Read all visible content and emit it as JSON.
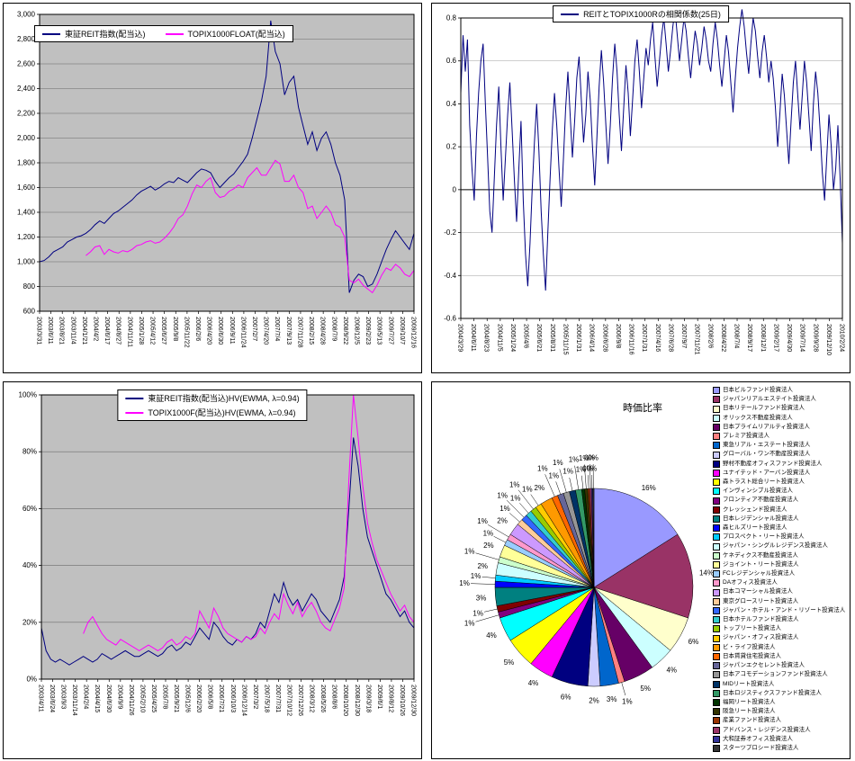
{
  "chart_data": [
    {
      "id": "reit-index",
      "type": "line",
      "title": "",
      "yformat": "comma",
      "ylim": [
        600,
        3000
      ],
      "ystep": 200,
      "grid": true,
      "legend_position": "top-inside",
      "plot_bg": "#C0C0C0",
      "grid_color": "#6B6B6B",
      "x_labels": [
        "2003/3/31",
        "2003/6/11",
        "2003/8/21",
        "2003/11/4",
        "2004/1/21",
        "2004/4/2",
        "2004/6/17",
        "2004/8/27",
        "2004/11/11",
        "2005/1/28",
        "2005/4/12",
        "2005/6/27",
        "2005/9/8",
        "2005/11/22",
        "2006/2/6",
        "2006/4/20",
        "2006/6/30",
        "2006/9/11",
        "2006/11/24",
        "2007/2/7",
        "2007/4/20",
        "2007/7/4",
        "2007/9/13",
        "2007/11/28",
        "2008/2/15",
        "2008/4/28",
        "2008/7/9",
        "2008/9/22",
        "2008/12/5",
        "2009/2/23",
        "2009/5/13",
        "2009/7/27",
        "2009/10/7",
        "2009/12/16"
      ],
      "series": [
        {
          "name": "東証REIT指数(配当込)",
          "color": "#000080",
          "values": [
            1000,
            1010,
            1040,
            1080,
            1100,
            1120,
            1160,
            1180,
            1200,
            1210,
            1230,
            1260,
            1300,
            1330,
            1310,
            1350,
            1390,
            1410,
            1440,
            1470,
            1500,
            1540,
            1570,
            1590,
            1610,
            1580,
            1600,
            1630,
            1650,
            1640,
            1680,
            1660,
            1640,
            1680,
            1720,
            1750,
            1740,
            1720,
            1650,
            1600,
            1640,
            1680,
            1710,
            1760,
            1810,
            1870,
            2000,
            2150,
            2300,
            2500,
            2950,
            2700,
            2600,
            2350,
            2450,
            2500,
            2250,
            2100,
            1950,
            2050,
            1900,
            2000,
            2050,
            1950,
            1800,
            1700,
            1500,
            750,
            850,
            900,
            880,
            800,
            820,
            900,
            1000,
            1100,
            1180,
            1250,
            1200,
            1150,
            1100,
            1230
          ]
        },
        {
          "name": "TOPIX1000FLOAT(配当込)",
          "color": "#FF00FF",
          "values": [
            null,
            null,
            null,
            null,
            null,
            null,
            null,
            null,
            null,
            null,
            1050,
            1080,
            1120,
            1130,
            1060,
            1100,
            1080,
            1070,
            1090,
            1080,
            1100,
            1130,
            1140,
            1160,
            1170,
            1150,
            1160,
            1190,
            1230,
            1280,
            1350,
            1380,
            1450,
            1550,
            1620,
            1600,
            1650,
            1680,
            1560,
            1520,
            1530,
            1570,
            1590,
            1620,
            1600,
            1680,
            1720,
            1760,
            1700,
            1700,
            1760,
            1820,
            1790,
            1650,
            1650,
            1700,
            1600,
            1560,
            1430,
            1450,
            1350,
            1400,
            1450,
            1400,
            1300,
            1280,
            1200,
            850,
            830,
            860,
            810,
            780,
            750,
            810,
            890,
            950,
            930,
            980,
            950,
            900,
            880,
            930
          ]
        }
      ]
    },
    {
      "id": "correlation",
      "type": "line",
      "title": "REITとTOPIX1000Rの相関係数(25日)",
      "yformat": "dec1",
      "ylim": [
        -0.6,
        0.8
      ],
      "ystep": 0.2,
      "grid": true,
      "legend_position": "top-title",
      "plot_bg": "#FFFFFF",
      "grid_color": "#B0B0B0",
      "x_labels": [
        "2004/3/29",
        "2004/6/11",
        "2004/8/23",
        "2004/11/5",
        "2005/1/24",
        "2005/4/6",
        "2005/6/21",
        "2005/8/31",
        "2005/11/15",
        "2006/1/31",
        "2006/4/14",
        "2006/6/28",
        "2006/9/8",
        "2006/11/16",
        "2007/1/31",
        "2007/4/16",
        "2007/6/28",
        "2007/9/7",
        "2007/11/21",
        "2008/2/6",
        "2008/4/22",
        "2008/7/4",
        "2008/9/17",
        "2008/12/1",
        "2009/2/17",
        "2009/4/30",
        "2009/7/14",
        "2009/9/28",
        "2009/12/10",
        "2010/2/24"
      ],
      "series": [
        {
          "name": "REITとTOPIX1000Rの相関係数(25日)",
          "color": "#000080",
          "values": [
            0.45,
            0.72,
            0.55,
            0.7,
            0.3,
            0.1,
            -0.05,
            0.25,
            0.45,
            0.6,
            0.68,
            0.4,
            0.15,
            -0.1,
            -0.2,
            0.05,
            0.3,
            0.48,
            0.2,
            -0.05,
            0.15,
            0.35,
            0.5,
            0.28,
            0.05,
            -0.15,
            0.1,
            0.32,
            -0.05,
            -0.3,
            -0.45,
            -0.25,
            0.0,
            0.22,
            0.4,
            0.18,
            -0.1,
            -0.3,
            -0.47,
            -0.2,
            0.05,
            0.28,
            0.45,
            0.3,
            0.1,
            -0.08,
            0.15,
            0.38,
            0.55,
            0.35,
            0.15,
            0.32,
            0.52,
            0.62,
            0.42,
            0.22,
            0.35,
            0.55,
            0.42,
            0.2,
            0.02,
            0.25,
            0.48,
            0.65,
            0.5,
            0.3,
            0.12,
            0.3,
            0.52,
            0.68,
            0.55,
            0.35,
            0.18,
            0.38,
            0.58,
            0.45,
            0.25,
            0.42,
            0.6,
            0.7,
            0.55,
            0.38,
            0.52,
            0.66,
            0.58,
            0.7,
            0.78,
            0.62,
            0.48,
            0.6,
            0.72,
            0.8,
            0.68,
            0.55,
            0.65,
            0.76,
            0.84,
            0.72,
            0.6,
            0.7,
            0.8,
            0.74,
            0.62,
            0.52,
            0.64,
            0.74,
            0.68,
            0.58,
            0.66,
            0.76,
            0.7,
            0.6,
            0.55,
            0.68,
            0.78,
            0.7,
            0.58,
            0.48,
            0.6,
            0.72,
            0.64,
            0.5,
            0.36,
            0.52,
            0.66,
            0.76,
            0.84,
            0.76,
            0.64,
            0.54,
            0.68,
            0.8,
            0.74,
            0.62,
            0.52,
            0.64,
            0.72,
            0.62,
            0.5,
            0.6,
            0.52,
            0.38,
            0.2,
            0.36,
            0.54,
            0.44,
            0.28,
            0.12,
            0.32,
            0.5,
            0.6,
            0.44,
            0.28,
            0.44,
            0.6,
            0.5,
            0.34,
            0.18,
            0.4,
            0.55,
            0.45,
            0.28,
            0.08,
            -0.05,
            0.15,
            0.35,
            0.2,
            0.0,
            0.1,
            0.3,
            0.05,
            -0.25
          ]
        }
      ]
    },
    {
      "id": "historical-volatility",
      "type": "line",
      "title": "",
      "yformat": "percent",
      "ylim": [
        0,
        100
      ],
      "ystep": 20,
      "grid": true,
      "legend_position": "top-inside-stacked",
      "plot_bg": "#C0C0C0",
      "grid_color": "#6B6B6B",
      "x_labels": [
        "2003/4/11",
        "2003/6/24",
        "2003/9/3",
        "2003/11/14",
        "2004/2/4",
        "2004/4/15",
        "2004/6/30",
        "2004/9/9",
        "2004/11/26",
        "2005/2/10",
        "2005/4/25",
        "2005/7/8",
        "2005/9/21",
        "2005/12/6",
        "2006/2/20",
        "2006/5/8",
        "2006/7/21",
        "2006/10/3",
        "2006/12/14",
        "2007/3/2",
        "2007/5/18",
        "2007/7/31",
        "2007/10/12",
        "2007/12/26",
        "2008/3/12",
        "2008/5/26",
        "2008/8/6",
        "2008/10/20",
        "2008/12/30",
        "2009/3/18",
        "2009/6/1",
        "2009/8/12",
        "2009/10/26",
        "2009/12/30"
      ],
      "series": [
        {
          "name": "東証REIT指数(配当込)HV(EWMA, λ=0.94)",
          "color": "#000080",
          "values": [
            18,
            10,
            7,
            6,
            7,
            6,
            5,
            6,
            7,
            8,
            7,
            6,
            7,
            9,
            8,
            7,
            8,
            9,
            10,
            9,
            8,
            8,
            9,
            10,
            9,
            8,
            9,
            11,
            12,
            10,
            11,
            13,
            12,
            15,
            18,
            16,
            14,
            20,
            18,
            15,
            13,
            12,
            14,
            13,
            15,
            14,
            16,
            20,
            18,
            24,
            30,
            27,
            34,
            29,
            26,
            28,
            24,
            27,
            30,
            28,
            24,
            22,
            20,
            24,
            28,
            36,
            60,
            85,
            75,
            60,
            50,
            45,
            40,
            35,
            30,
            28,
            25,
            22,
            24,
            20,
            18
          ]
        },
        {
          "name": "TOPIX1000F(配当込)HV(EWMA, λ=0.94)",
          "color": "#FF00FF",
          "values": [
            null,
            null,
            null,
            null,
            null,
            null,
            null,
            null,
            null,
            16,
            20,
            22,
            19,
            16,
            14,
            13,
            12,
            14,
            13,
            12,
            11,
            10,
            11,
            12,
            11,
            10,
            11,
            13,
            14,
            12,
            13,
            15,
            14,
            16,
            24,
            21,
            18,
            25,
            22,
            18,
            16,
            15,
            14,
            13,
            15,
            14,
            15,
            18,
            16,
            20,
            23,
            21,
            30,
            26,
            23,
            27,
            22,
            25,
            27,
            24,
            20,
            18,
            17,
            21,
            25,
            32,
            70,
            100,
            85,
            68,
            55,
            48,
            42,
            38,
            34,
            30,
            27,
            24,
            26,
            22,
            20
          ]
        }
      ]
    },
    {
      "id": "market-value-ratio",
      "type": "pie",
      "title": "時価比率",
      "legend_position": "right",
      "labels": [
        "日本ビルファンド投資法人",
        "ジャパンリアルエステイト投資法人",
        "日本リテールファンド投資法人",
        "オリックス不動産投資法人",
        "日本プライムリアルティ投資法人",
        "プレミア投資法人",
        "東急リアル・エステート投資法人",
        "グローバル・ワン不動産投資法人",
        "野村不動産オフィスファンド投資法人",
        "ユナイテッド・アーバン投資法人",
        "森トラスト総合リート投資法人",
        "インヴィンシブル投資法人",
        "フロンティア不動産投資法人",
        "クレッシェンド投資法人",
        "日本レジデンシャル投資法人",
        "森ヒルズリート投資法人",
        "プロスペクト・リート投資法人",
        "ジャパン・シングルレジデンス投資法人",
        "ケネディクス不動産投資法人",
        "ジョイント・リート投資法人",
        "FCレジデンシャル投資法人",
        "DAオフィス投資法人",
        "日本コマーシャル投資法人",
        "東京グロースリート投資法人",
        "ジャパン・ホテル・アンド・リゾート投資法人",
        "日本ホテルファンド投資法人",
        "トップリート投資法人",
        "ジャパン・オフィス投資法人",
        "ビ・ライフ投資法人",
        "日本賃貸住宅投資法人",
        "ジャパンエクセレント投資法人",
        "日本アコモデーションファンド投資法人",
        "MIDリート投資法人",
        "日本ロジスティクスファンド投資法人",
        "福岡リート投資法人",
        "阪急リート投資法人",
        "産業ファンド投資法人",
        "アドバンス・レジデンス投資法人",
        "大和証券オフィス投資法人",
        "スターツプロシード投資法人"
      ],
      "values": [
        16,
        14,
        6,
        4,
        5,
        1,
        3,
        2,
        6,
        4,
        5,
        4,
        1,
        1,
        3,
        1,
        1,
        2,
        1,
        2,
        1,
        1,
        2,
        1,
        1,
        1,
        1,
        1,
        2,
        1,
        1,
        1,
        1,
        1,
        0.5,
        0.5,
        0.3,
        0.3,
        0.2,
        0.2
      ],
      "colors": [
        "#9999FF",
        "#993366",
        "#FFFFCC",
        "#CCFFFF",
        "#660066",
        "#FF8080",
        "#0066CC",
        "#CCCCFF",
        "#000080",
        "#FF00FF",
        "#FFFF00",
        "#00FFFF",
        "#800080",
        "#800000",
        "#008080",
        "#0000FF",
        "#00CCFF",
        "#CCFFFF",
        "#CCFFCC",
        "#FFFF99",
        "#99CCFF",
        "#FF99CC",
        "#CC99FF",
        "#FFCC99",
        "#3366FF",
        "#33CCCC",
        "#99CC00",
        "#FFCC00",
        "#FF9900",
        "#FF6600",
        "#666699",
        "#969696",
        "#003366",
        "#339966",
        "#003300",
        "#333300",
        "#993300",
        "#993366",
        "#333399",
        "#333333"
      ]
    }
  ]
}
